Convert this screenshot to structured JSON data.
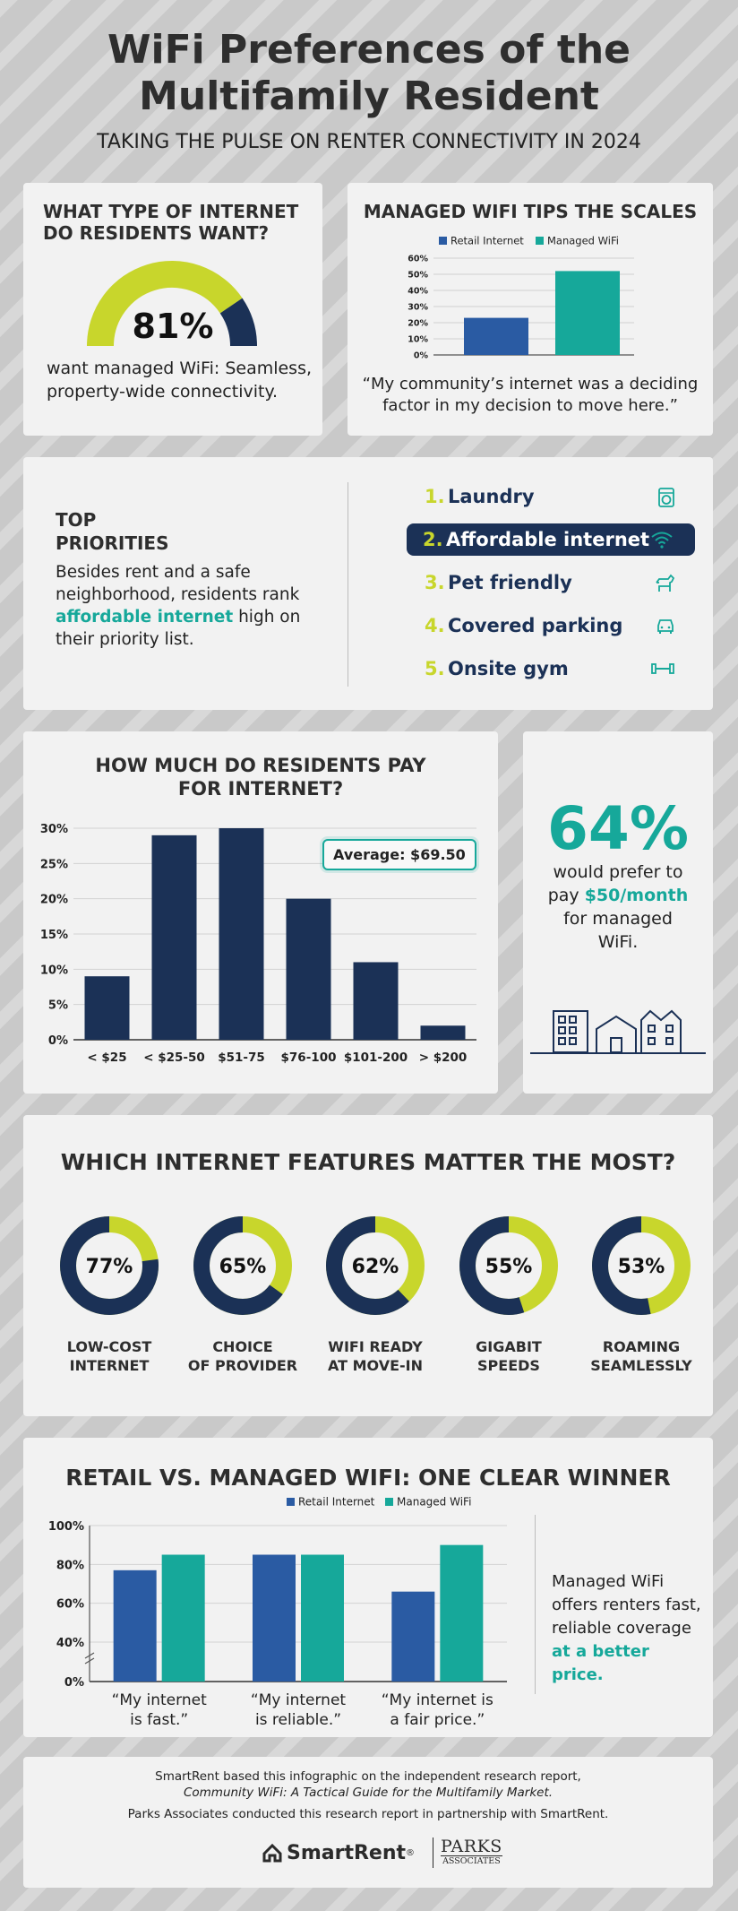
{
  "header": {
    "title_line1": "WiFi Preferences of the",
    "title_line2": "Multifamily Resident",
    "subtitle": "TAKING THE PULSE ON RENTER CONNECTIVITY IN 2024"
  },
  "internet_type": {
    "heading_line1": "WHAT TYPE OF INTERNET",
    "heading_line2": "DO RESIDENTS WANT?",
    "percent_text": "81%",
    "percent_value": 81,
    "desc_line1": "want managed WiFi: Seamless,",
    "desc_line2": "property-wide connectivity.",
    "colors": {
      "main": "#1b3156",
      "rest": "#c8d62c"
    }
  },
  "managed_tips": {
    "heading": "MANAGED WIFI TIPS THE SCALES",
    "quote_line1": "“My community’s internet was a deciding",
    "quote_line2": "factor in my decision to move here.”"
  },
  "priorities": {
    "heading_line1": "TOP",
    "heading_line2": "PRIORITIES",
    "desc_line1": "Besides rent and a safe",
    "desc_line2": "neighborhood, residents rank",
    "desc_highlight": "affordable internet",
    "desc_after": " high on",
    "desc_line4": "their priority list.",
    "items": [
      {
        "num": "1.",
        "label": "Laundry",
        "icon": "washing-machine-icon"
      },
      {
        "num": "2.",
        "label": "Affordable internet",
        "icon": "wifi-icon"
      },
      {
        "num": "3.",
        "label": "Pet friendly",
        "icon": "dog-icon"
      },
      {
        "num": "4.",
        "label": "Covered parking",
        "icon": "car-icon"
      },
      {
        "num": "5.",
        "label": "Onsite gym",
        "icon": "dumbbell-icon"
      }
    ]
  },
  "pay": {
    "heading_line1": "HOW MUCH DO RESIDENTS PAY",
    "heading_line2": "FOR INTERNET?",
    "average_label": "Average: $69.50"
  },
  "prefer": {
    "big": "64%",
    "line1": "would prefer to",
    "line2_pre": "pay ",
    "line2_highlight": "$50/month",
    "line3": "for managed",
    "line4": "WiFi.",
    "icon": "buildings-icon"
  },
  "features": {
    "heading": "WHICH INTERNET FEATURES MATTER THE MOST?",
    "items": [
      {
        "pct_text": "77%",
        "value": 77,
        "label_line1": "LOW-COST",
        "label_line2": "INTERNET"
      },
      {
        "pct_text": "65%",
        "value": 65,
        "label_line1": "CHOICE",
        "label_line2": "OF PROVIDER"
      },
      {
        "pct_text": "62%",
        "value": 62,
        "label_line1": "WIFI READY",
        "label_line2": "AT MOVE-IN"
      },
      {
        "pct_text": "55%",
        "value": 55,
        "label_line1": "GIGABIT",
        "label_line2": "SPEEDS"
      },
      {
        "pct_text": "53%",
        "value": 53,
        "label_line1": "ROAMING",
        "label_line2": "SEAMLESSLY"
      }
    ]
  },
  "retail_vs": {
    "heading": "RETAIL VS. MANAGED WIFI: ONE CLEAR WINNER",
    "side_line1": "Managed WiFi",
    "side_line2": "offers renters fast,",
    "side_line3": "reliable coverage",
    "side_highlight": "at a better price."
  },
  "footer": {
    "line1": "SmartRent based this infographic on the independent research report,",
    "line2": "Community WiFi: A Tactical Guide for the Multifamily Market.",
    "line3": "Parks Associates conducted this research report in partnership with SmartRent.",
    "logo1": "SmartRent",
    "logo1_mark": "®",
    "logo2_line1": "PARKS",
    "logo2_line2": "ASSOCIATES"
  },
  "chart_data": [
    {
      "type": "bar",
      "categories": [
        ""
      ],
      "series": [
        {
          "name": "Retail Internet",
          "values": [
            23
          ],
          "color": "#2a5ba3"
        },
        {
          "name": "Managed WiFi",
          "values": [
            52
          ],
          "color": "#16a89a"
        }
      ],
      "yticks": [
        "0%",
        "10%",
        "20%",
        "30%",
        "40%",
        "50%",
        "60%"
      ],
      "ylim": [
        0,
        60
      ],
      "legend": "top"
    },
    {
      "type": "bar",
      "categories": [
        "< $25",
        "< $25-50",
        "$51-75",
        "$76-100",
        "$101-200",
        "> $200"
      ],
      "values": [
        9,
        29,
        30,
        20,
        11,
        2
      ],
      "yticks": [
        "0%",
        "5%",
        "10%",
        "15%",
        "20%",
        "25%",
        "30%"
      ],
      "ylim": [
        0,
        30
      ],
      "color": "#1b3156",
      "annotation": "Average: $69.50"
    },
    {
      "type": "bar",
      "categories": [
        "“My internet is fast.”",
        "“My internet is reliable.”",
        "“My internet is a fair price.”"
      ],
      "category_lines": [
        [
          "“My internet",
          "is fast.”"
        ],
        [
          "“My internet",
          "is reliable.”"
        ],
        [
          "“My internet is",
          "a fair price.”"
        ]
      ],
      "series": [
        {
          "name": "Retail Internet",
          "values": [
            77,
            85,
            66
          ],
          "color": "#2a5ba3"
        },
        {
          "name": "Managed WiFi",
          "values": [
            85,
            85,
            90
          ],
          "color": "#16a89a"
        }
      ],
      "yticks": [
        "0%",
        "40%",
        "60%",
        "80%",
        "100%"
      ],
      "ytick_values": [
        0,
        40,
        60,
        80,
        100
      ],
      "axis_break": true,
      "legend": "top"
    }
  ]
}
